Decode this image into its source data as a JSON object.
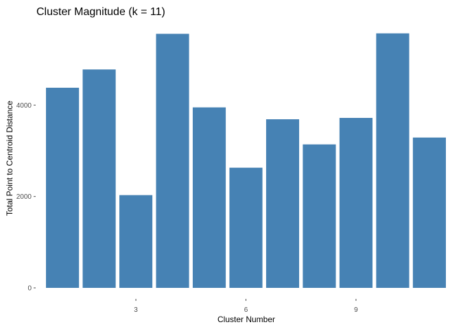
{
  "chart_data": {
    "type": "bar",
    "title": "Cluster Magnitude (k = 11)",
    "xlabel": "Cluster Number",
    "ylabel": "Total Point to Centroid Distance",
    "categories": [
      1,
      2,
      3,
      4,
      5,
      6,
      7,
      8,
      9,
      10,
      11
    ],
    "values": [
      4380,
      4780,
      2030,
      5560,
      3950,
      2630,
      3690,
      3140,
      3720,
      5570,
      3290
    ],
    "x_ticks": [
      "3",
      "6",
      "9"
    ],
    "y_ticks": [
      "0",
      "2000",
      "4000"
    ],
    "ylim": [
      0,
      5570
    ],
    "bar_color": "#4682B4",
    "grid": false,
    "legend": "none"
  }
}
